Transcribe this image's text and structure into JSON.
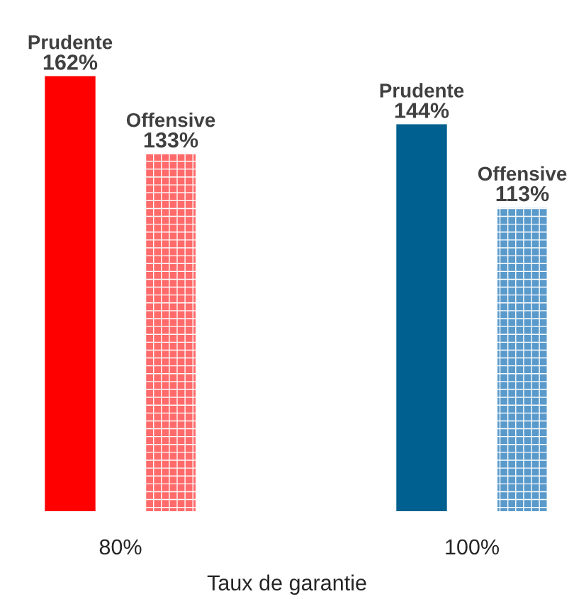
{
  "chart_data": {
    "type": "bar",
    "xlabel": "Taux de garantie",
    "categories": [
      "80%",
      "100%"
    ],
    "tick_labels": "x",
    "series": [
      {
        "name": "Prudente",
        "colors": [
          "#ff0000",
          "#00608f"
        ],
        "values": [
          162,
          144
        ],
        "value_labels": [
          "162%",
          "144%"
        ]
      },
      {
        "name": "Offensive",
        "colors": [
          "#ff6a6a",
          "#5a9acb"
        ],
        "values": [
          133,
          113
        ],
        "value_labels": [
          "133%",
          "113%"
        ]
      }
    ]
  }
}
